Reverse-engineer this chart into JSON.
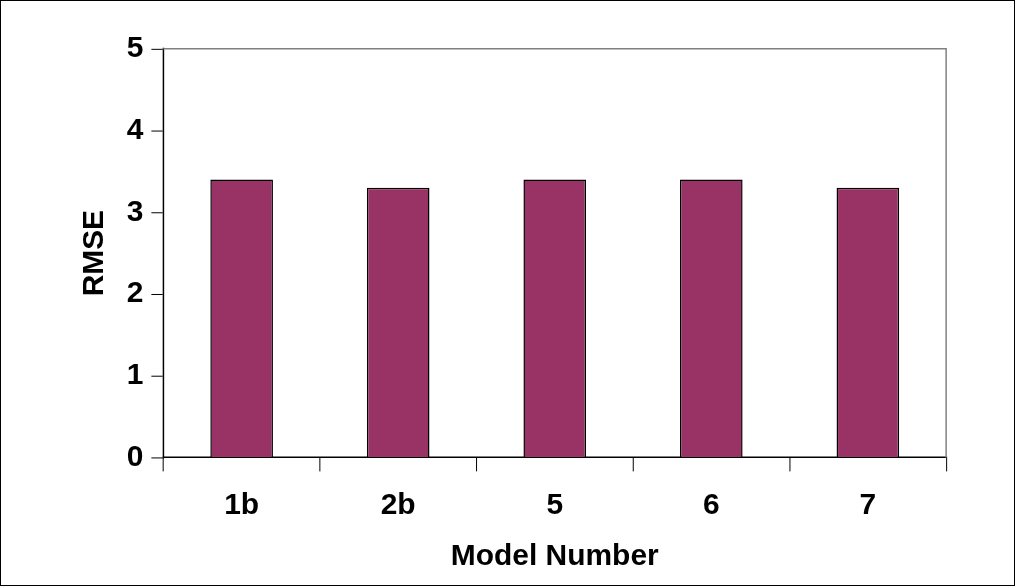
{
  "chart_data": {
    "type": "bar",
    "xlabel": "Model Number",
    "ylabel": "RMSE",
    "categories": [
      "1b",
      "2b",
      "5",
      "6",
      "7"
    ],
    "values": [
      3.4,
      3.3,
      3.4,
      3.4,
      3.3
    ],
    "color": "#993366",
    "ylim": [
      0,
      5
    ],
    "yticks": [
      0,
      1,
      2,
      3,
      4,
      5
    ],
    "grid": false,
    "legend": false
  }
}
